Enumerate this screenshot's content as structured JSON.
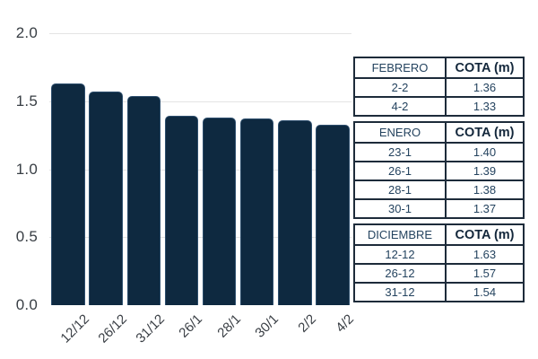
{
  "chart_data": {
    "type": "bar",
    "categories": [
      "12/12",
      "26/12",
      "31/12",
      "26/1",
      "28/1",
      "30/1",
      "2/2",
      "4/2"
    ],
    "values": [
      1.63,
      1.57,
      1.54,
      1.39,
      1.38,
      1.37,
      1.36,
      1.33
    ],
    "title": "",
    "xlabel": "",
    "ylabel": "",
    "ylim": [
      0,
      2.0
    ],
    "yticks": [
      0.0,
      0.5,
      1.0,
      1.5,
      2.0
    ],
    "ytick_labels": [
      "0.0",
      "0.5",
      "1.0",
      "1.5",
      "2.0"
    ],
    "grid": true,
    "legend": "none",
    "bar_color": "#0e2940"
  },
  "tables": [
    {
      "id": "febrero",
      "month_label": "FEBRERO",
      "value_label": "COTA (m)",
      "rows": [
        {
          "date": "2-2",
          "value": "1.36"
        },
        {
          "date": "4-2",
          "value": "1.33"
        }
      ]
    },
    {
      "id": "enero",
      "month_label": "ENERO",
      "value_label": "COTA (m)",
      "rows": [
        {
          "date": "23-1",
          "value": "1.40"
        },
        {
          "date": "26-1",
          "value": "1.39"
        },
        {
          "date": "28-1",
          "value": "1.38"
        },
        {
          "date": "30-1",
          "value": "1.37"
        }
      ]
    },
    {
      "id": "diciembre",
      "month_label": "DICIEMBRE",
      "value_label": "COTA (m)",
      "rows": [
        {
          "date": "12-12",
          "value": "1.63"
        },
        {
          "date": "26-12",
          "value": "1.57"
        },
        {
          "date": "31-12",
          "value": "1.54"
        }
      ]
    }
  ],
  "colors": {
    "background": "#ffffff",
    "bar": "#0e2940",
    "bar_edge": "#49709480",
    "gridline": "#e4e4e4",
    "axis_text": "#3a3f45",
    "table_border": "#1d2b3a",
    "table_text": "#24435f",
    "table_header_value_text": "#13273b"
  }
}
